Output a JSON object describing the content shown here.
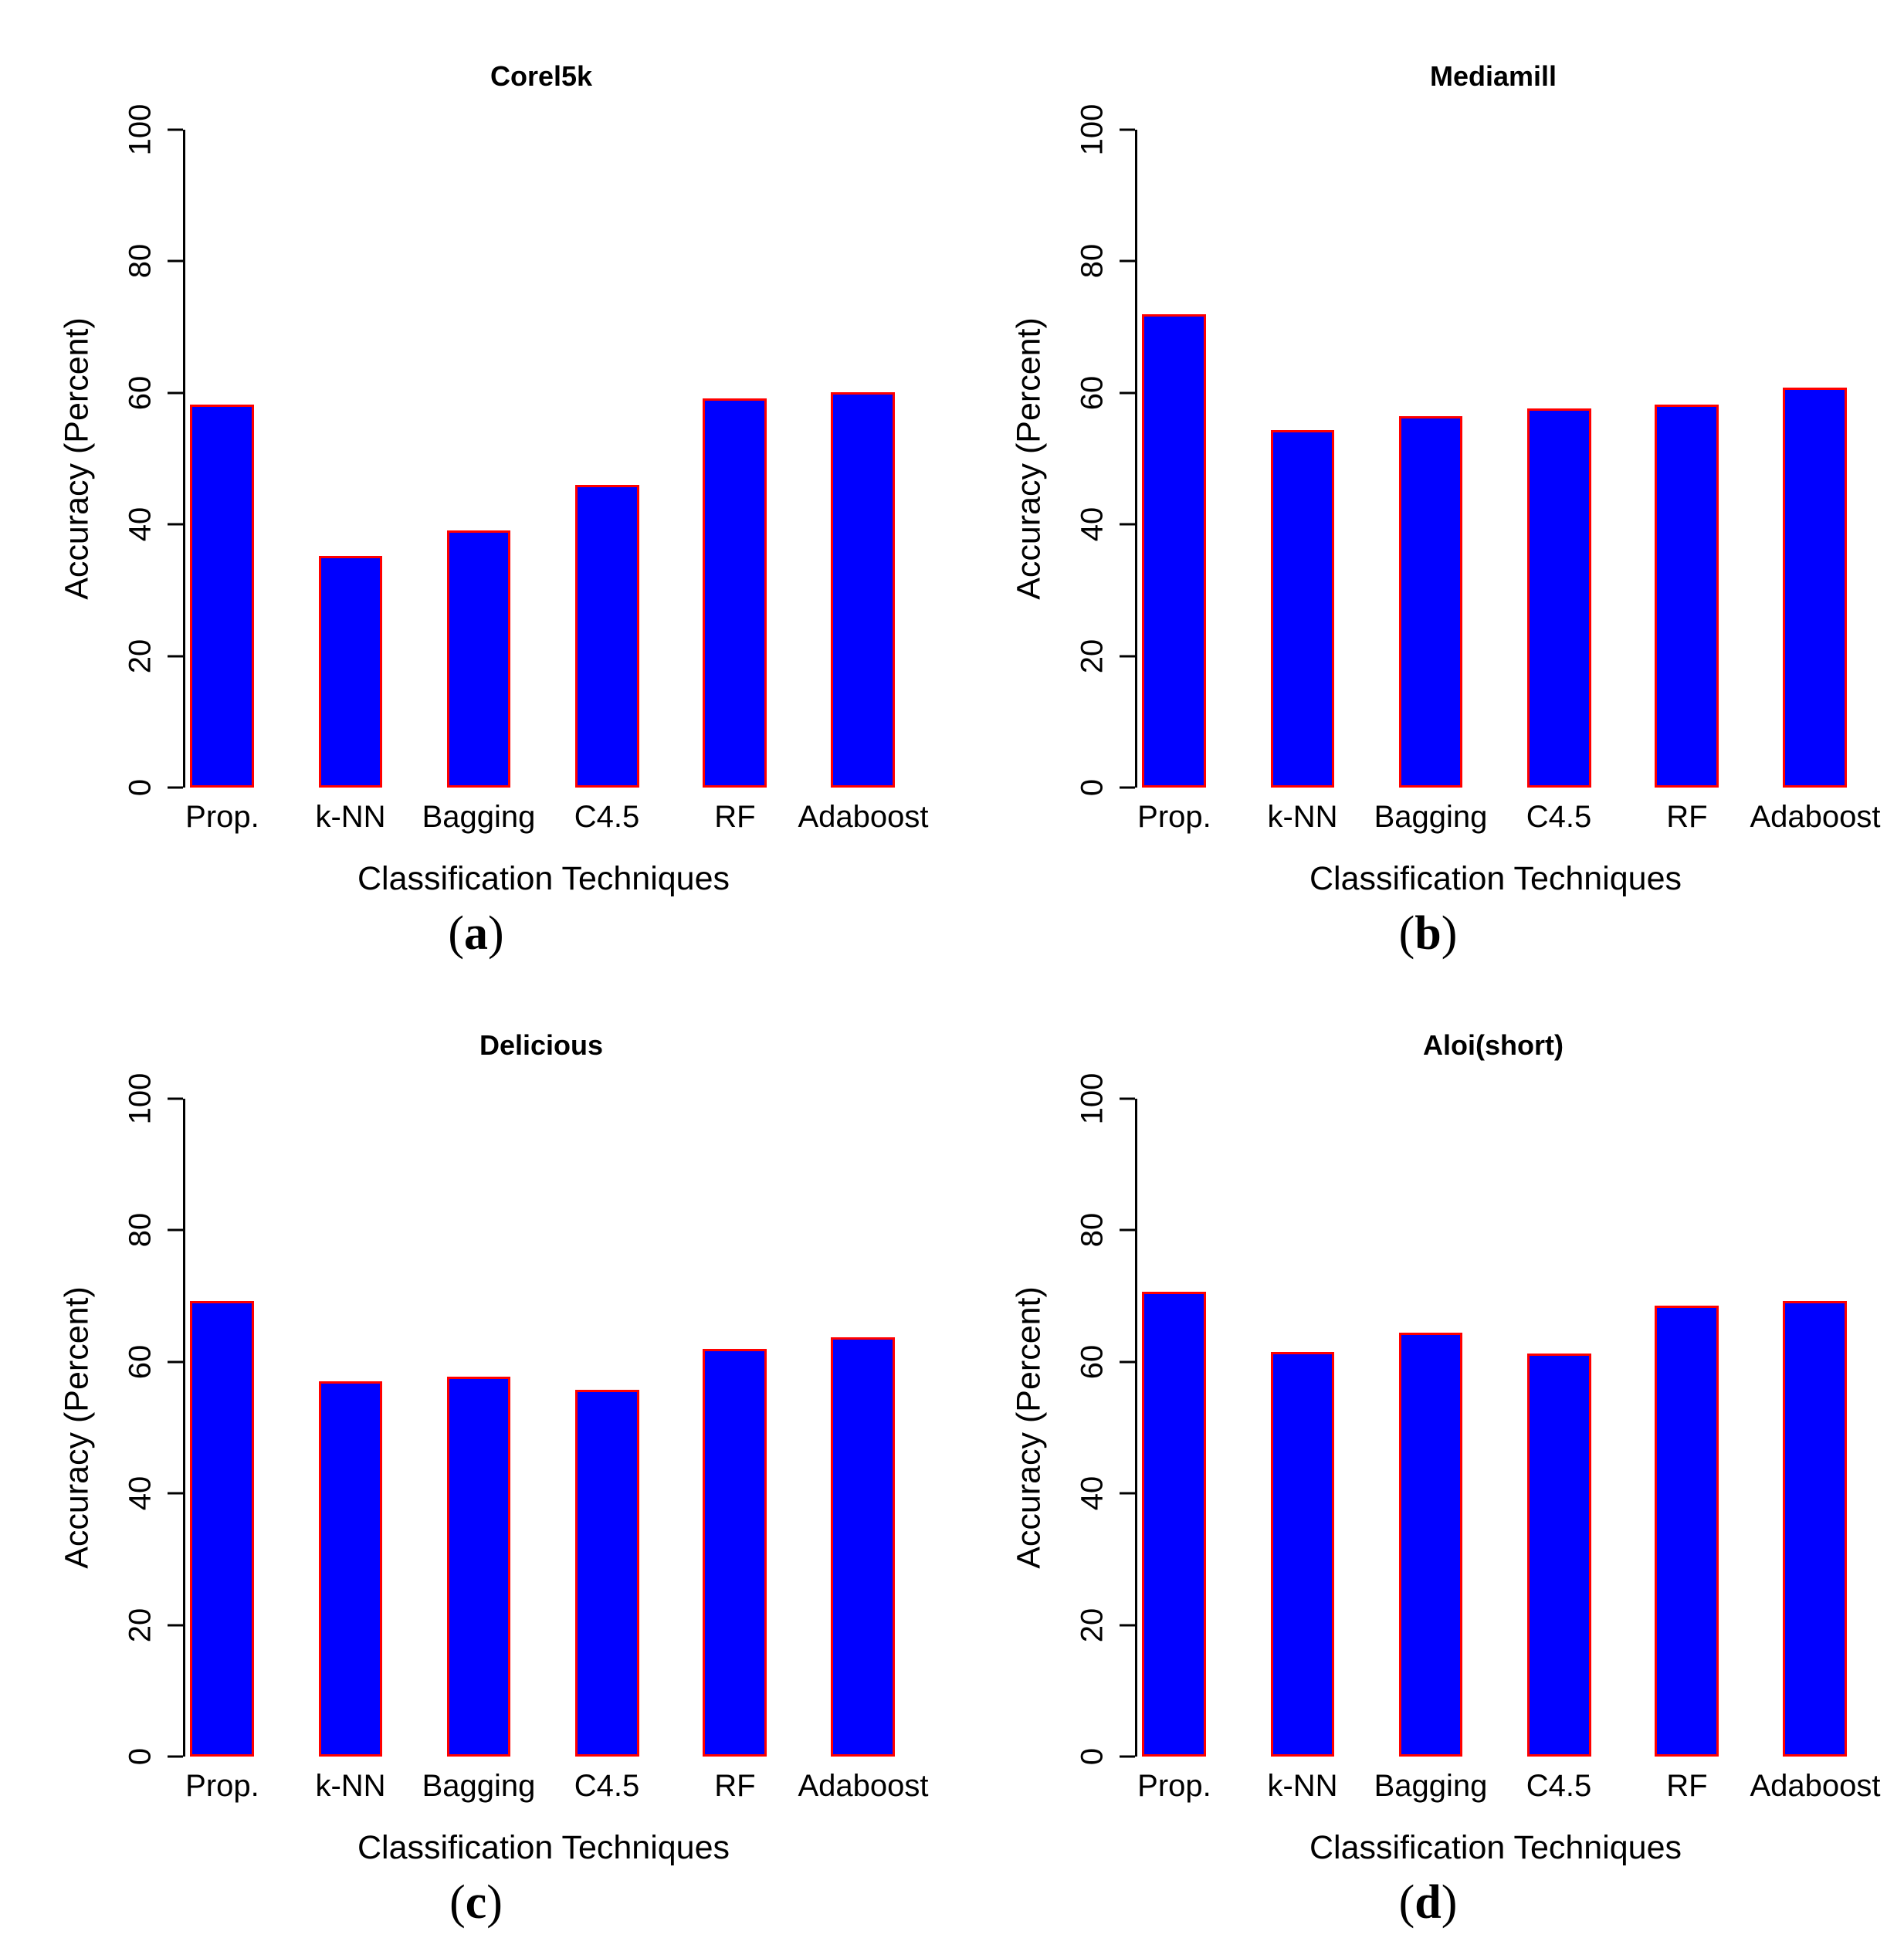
{
  "figure": {
    "ylabel": "Accuracy (Percent)",
    "xlabel": "Classification Techniques",
    "bar_fill": "#0000ff",
    "bar_border": "#ff0000",
    "axis_color": "#000000",
    "paren_open": "(",
    "paren_close": ")"
  },
  "chart_data": [
    {
      "type": "bar",
      "panel_letter": "a",
      "title": "Corel5k",
      "categories": [
        "Prop.",
        "k-NN",
        "Bagging",
        "C4.5",
        "RF",
        "Adaboost"
      ],
      "values": [
        58.2,
        35.2,
        39.1,
        46.0,
        59.2,
        60.1
      ],
      "xlabel": "Classification Techniques",
      "ylabel": "Accuracy (Percent)",
      "ylim": [
        0,
        100
      ],
      "y_ticks": [
        0,
        20,
        40,
        60,
        80,
        100
      ],
      "grid": "off",
      "legend": "none"
    },
    {
      "type": "bar",
      "panel_letter": "b",
      "title": "Mediamill",
      "categories": [
        "Prop.",
        "k-NN",
        "Bagging",
        "C4.5",
        "RF",
        "Adaboost"
      ],
      "values": [
        72.0,
        54.3,
        56.4,
        57.6,
        58.2,
        60.8
      ],
      "xlabel": "Classification Techniques",
      "ylabel": "Accuracy (Percent)",
      "ylim": [
        0,
        100
      ],
      "y_ticks": [
        0,
        20,
        40,
        60,
        80,
        100
      ],
      "grid": "off",
      "legend": "none"
    },
    {
      "type": "bar",
      "panel_letter": "c",
      "title": "Delicious",
      "categories": [
        "Prop.",
        "k-NN",
        "Bagging",
        "C4.5",
        "RF",
        "Adaboost"
      ],
      "values": [
        69.2,
        57.0,
        57.8,
        55.7,
        62.0,
        63.7
      ],
      "xlabel": "Classification Techniques",
      "ylabel": "Accuracy (Percent)",
      "ylim": [
        0,
        100
      ],
      "y_ticks": [
        0,
        20,
        40,
        60,
        80,
        100
      ],
      "grid": "off",
      "legend": "none"
    },
    {
      "type": "bar",
      "panel_letter": "d",
      "title": "Aloi(short)",
      "categories": [
        "Prop.",
        "k-NN",
        "Bagging",
        "C4.5",
        "RF",
        "Adaboost"
      ],
      "values": [
        70.7,
        61.5,
        64.4,
        61.3,
        68.5,
        69.3
      ],
      "xlabel": "Classification Techniques",
      "ylabel": "Accuracy (Percent)",
      "ylim": [
        0,
        100
      ],
      "y_ticks": [
        0,
        20,
        40,
        60,
        80,
        100
      ],
      "grid": "off",
      "legend": "none"
    }
  ]
}
